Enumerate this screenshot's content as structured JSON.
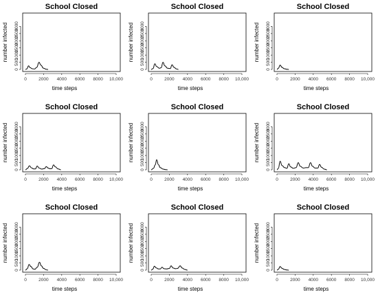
{
  "chart_data": [
    {
      "type": "line",
      "title": "School Closed",
      "xlabel": "time steps",
      "ylabel": "number infected",
      "xlim": [
        0,
        10000
      ],
      "ylim": [
        0,
        3500
      ],
      "x_ticks": [
        "0",
        "2000",
        "4000",
        "6000",
        "8000",
        "10,000"
      ],
      "y_ticks": [
        "0",
        "500",
        "1000",
        "1500",
        "2000",
        "2500",
        "3000"
      ],
      "series": [
        {
          "points": [
            [
              0,
              0
            ],
            [
              150,
              40
            ],
            [
              350,
              250
            ],
            [
              500,
              130
            ],
            [
              750,
              50
            ],
            [
              1000,
              30
            ],
            [
              1250,
              150
            ],
            [
              1500,
              500
            ],
            [
              1700,
              300
            ],
            [
              2000,
              80
            ],
            [
              2300,
              10
            ],
            [
              2500,
              0
            ]
          ]
        }
      ]
    },
    {
      "type": "line",
      "title": "School Closed",
      "xlabel": "time steps",
      "ylabel": "number infected",
      "xlim": [
        0,
        10000
      ],
      "ylim": [
        0,
        3500
      ],
      "x_ticks": [
        "0",
        "2000",
        "4000",
        "6000",
        "8000",
        "10,000"
      ],
      "y_ticks": [
        "0",
        "500",
        "1000",
        "1500",
        "2000",
        "2500",
        "3000"
      ],
      "series": [
        {
          "points": [
            [
              0,
              0
            ],
            [
              200,
              60
            ],
            [
              400,
              400
            ],
            [
              600,
              200
            ],
            [
              900,
              80
            ],
            [
              1100,
              120
            ],
            [
              1300,
              500
            ],
            [
              1500,
              250
            ],
            [
              1800,
              80
            ],
            [
              2100,
              60
            ],
            [
              2300,
              320
            ],
            [
              2500,
              150
            ],
            [
              2800,
              30
            ],
            [
              3000,
              0
            ]
          ]
        }
      ]
    },
    {
      "type": "line",
      "title": "School Closed",
      "xlabel": "time steps",
      "ylabel": "number infected",
      "xlim": [
        0,
        10000
      ],
      "ylim": [
        0,
        3500
      ],
      "x_ticks": [
        "0",
        "2000",
        "4000",
        "6000",
        "8000",
        "10,000"
      ],
      "y_ticks": [
        "0",
        "500",
        "1000",
        "1500",
        "2000",
        "2500",
        "3000"
      ],
      "series": [
        {
          "points": [
            [
              0,
              0
            ],
            [
              150,
              80
            ],
            [
              350,
              300
            ],
            [
              550,
              150
            ],
            [
              800,
              50
            ],
            [
              1100,
              10
            ],
            [
              1300,
              0
            ]
          ]
        }
      ]
    },
    {
      "type": "line",
      "title": "School Closed",
      "xlabel": "time steps",
      "ylabel": "number infected",
      "xlim": [
        0,
        10000
      ],
      "ylim": [
        0,
        3500
      ],
      "x_ticks": [
        "0",
        "2000",
        "4000",
        "6000",
        "8000",
        "10,000"
      ],
      "y_ticks": [
        "0",
        "500",
        "1000",
        "1500",
        "2000",
        "2500",
        "3000"
      ],
      "series": [
        {
          "points": [
            [
              0,
              0
            ],
            [
              200,
              80
            ],
            [
              450,
              280
            ],
            [
              650,
              140
            ],
            [
              900,
              60
            ],
            [
              1100,
              60
            ],
            [
              1300,
              260
            ],
            [
              1500,
              120
            ],
            [
              1800,
              50
            ],
            [
              2100,
              80
            ],
            [
              2300,
              220
            ],
            [
              2500,
              120
            ],
            [
              2700,
              70
            ],
            [
              2900,
              80
            ],
            [
              3100,
              340
            ],
            [
              3300,
              200
            ],
            [
              3600,
              60
            ],
            [
              3900,
              0
            ]
          ]
        }
      ]
    },
    {
      "type": "line",
      "title": "School Closed",
      "xlabel": "time steps",
      "ylabel": "number infected",
      "xlim": [
        0,
        10000
      ],
      "ylim": [
        0,
        3500
      ],
      "x_ticks": [
        "0",
        "2000",
        "4000",
        "6000",
        "8000",
        "10,000"
      ],
      "y_ticks": [
        "0",
        "500",
        "1000",
        "1500",
        "2000",
        "2500",
        "3000"
      ],
      "series": [
        {
          "points": [
            [
              0,
              0
            ],
            [
              250,
              100
            ],
            [
              450,
              350
            ],
            [
              600,
              700
            ],
            [
              800,
              350
            ],
            [
              1000,
              150
            ],
            [
              1300,
              50
            ],
            [
              1600,
              10
            ],
            [
              1800,
              0
            ]
          ]
        }
      ]
    },
    {
      "type": "line",
      "title": "School Closed",
      "xlabel": "time steps",
      "ylabel": "number infected",
      "xlim": [
        0,
        10000
      ],
      "ylim": [
        0,
        3500
      ],
      "x_ticks": [
        "0",
        "2000",
        "4000",
        "6000",
        "8000",
        "10,000"
      ],
      "y_ticks": [
        "0",
        "500",
        "1000",
        "1500",
        "2000",
        "2500",
        "3000"
      ],
      "series": [
        {
          "points": [
            [
              0,
              0
            ],
            [
              150,
              100
            ],
            [
              350,
              600
            ],
            [
              550,
              300
            ],
            [
              850,
              150
            ],
            [
              1100,
              100
            ],
            [
              1300,
              420
            ],
            [
              1500,
              200
            ],
            [
              1800,
              100
            ],
            [
              2100,
              150
            ],
            [
              2350,
              500
            ],
            [
              2550,
              250
            ],
            [
              2900,
              120
            ],
            [
              3200,
              150
            ],
            [
              3450,
              150
            ],
            [
              3700,
              500
            ],
            [
              3900,
              250
            ],
            [
              4200,
              120
            ],
            [
              4500,
              120
            ],
            [
              4700,
              370
            ],
            [
              4900,
              180
            ],
            [
              5200,
              50
            ],
            [
              5500,
              0
            ]
          ]
        }
      ]
    },
    {
      "type": "line",
      "title": "School Closed",
      "xlabel": "time steps",
      "ylabel": "number infected",
      "xlim": [
        0,
        10000
      ],
      "ylim": [
        0,
        3500
      ],
      "x_ticks": [
        "0",
        "2000",
        "4000",
        "6000",
        "8000",
        "10,000"
      ],
      "y_ticks": [
        "0",
        "500",
        "1000",
        "1500",
        "2000",
        "2500",
        "3000"
      ],
      "series": [
        {
          "points": [
            [
              0,
              0
            ],
            [
              200,
              100
            ],
            [
              400,
              400
            ],
            [
              600,
              250
            ],
            [
              850,
              80
            ],
            [
              1050,
              60
            ],
            [
              1300,
              200
            ],
            [
              1550,
              550
            ],
            [
              1750,
              300
            ],
            [
              2000,
              120
            ],
            [
              2300,
              20
            ],
            [
              2500,
              0
            ]
          ]
        }
      ]
    },
    {
      "type": "line",
      "title": "School Closed",
      "xlabel": "time steps",
      "ylabel": "number infected",
      "xlim": [
        0,
        10000
      ],
      "ylim": [
        0,
        3500
      ],
      "x_ticks": [
        "0",
        "2000",
        "4000",
        "6000",
        "8000",
        "10,000"
      ],
      "y_ticks": [
        "0",
        "500",
        "1000",
        "1500",
        "2000",
        "2500",
        "3000"
      ],
      "series": [
        {
          "points": [
            [
              0,
              0
            ],
            [
              200,
              80
            ],
            [
              350,
              280
            ],
            [
              550,
              160
            ],
            [
              800,
              80
            ],
            [
              1000,
              80
            ],
            [
              1200,
              200
            ],
            [
              1400,
              100
            ],
            [
              1700,
              80
            ],
            [
              2000,
              120
            ],
            [
              2200,
              300
            ],
            [
              2400,
              150
            ],
            [
              2700,
              100
            ],
            [
              2900,
              120
            ],
            [
              3200,
              300
            ],
            [
              3400,
              150
            ],
            [
              3700,
              50
            ],
            [
              4000,
              0
            ]
          ]
        }
      ]
    },
    {
      "type": "line",
      "title": "School Closed",
      "xlabel": "time steps",
      "ylabel": "number infected",
      "xlim": [
        0,
        10000
      ],
      "ylim": [
        0,
        3500
      ],
      "x_ticks": [
        "0",
        "2000",
        "4000",
        "6000",
        "8000",
        "10,000"
      ],
      "y_ticks": [
        "0",
        "500",
        "1000",
        "1500",
        "2000",
        "2500",
        "3000"
      ],
      "series": [
        {
          "points": [
            [
              0,
              0
            ],
            [
              150,
              60
            ],
            [
              350,
              250
            ],
            [
              550,
              130
            ],
            [
              800,
              50
            ],
            [
              1100,
              10
            ],
            [
              1300,
              0
            ]
          ]
        }
      ]
    }
  ]
}
